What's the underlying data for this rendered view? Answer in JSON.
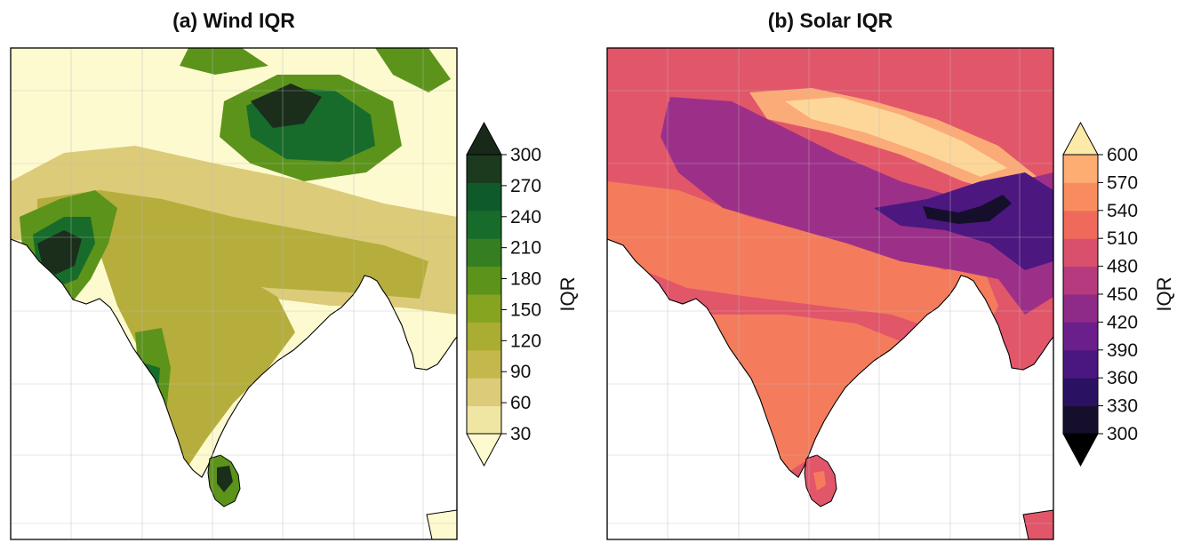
{
  "panels": [
    {
      "title": "(a) Wind IQR",
      "colorbar": {
        "label": "IQR",
        "ticks": [
          30,
          60,
          90,
          120,
          150,
          180,
          210,
          240,
          270,
          300
        ],
        "colors": [
          "#f0e6a4",
          "#dccb78",
          "#c4b84c",
          "#a9ad32",
          "#86a41f",
          "#5c931b",
          "#357f22",
          "#186c2b",
          "#0f5a2a",
          "#1b3a1e"
        ],
        "under_color": "#fdfad0",
        "over_color": "#18291a"
      },
      "map_colors": {
        "low": "#fdfad0",
        "mid": "#dccb78",
        "olive": "#b5ae3c",
        "green": "#5c931b",
        "dark": "#186c2b",
        "darkest": "#1b2e1c"
      }
    },
    {
      "title": "(b) Solar IQR",
      "colorbar": {
        "label": "IQR",
        "ticks": [
          300,
          330,
          360,
          390,
          420,
          450,
          480,
          510,
          540,
          570,
          600
        ],
        "colors": [
          "#160f2c",
          "#2b1162",
          "#4a1680",
          "#6b1f8a",
          "#8e2a88",
          "#b63a7e",
          "#d8506b",
          "#ef6a5a",
          "#f98c5e",
          "#fdac72"
        ],
        "under_color": "#000000",
        "over_color": "#fdeaa8"
      },
      "map_colors": {
        "base": "#e2566a",
        "warm": "#f47c5c",
        "light": "#fbab77",
        "pale": "#fdd79a",
        "purple": "#9c3088",
        "deep": "#4c1880",
        "darkest": "#160f2c"
      }
    }
  ]
}
